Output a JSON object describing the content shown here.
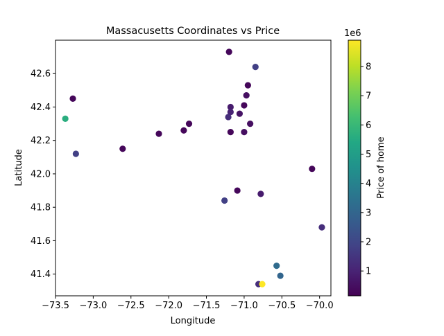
{
  "chart_data": {
    "type": "scatter",
    "title": "Massacusetts Coordinates vs Price",
    "xlabel": "Longitude",
    "ylabel": "Latitude",
    "xlim": [
      -73.5,
      -69.85
    ],
    "ylim": [
      41.27,
      42.8
    ],
    "xticks": [
      -73.5,
      -73.0,
      -72.5,
      -72.0,
      -71.5,
      -71.0,
      -70.5,
      -70.0
    ],
    "xtick_labels": [
      "−73.5",
      "−73.0",
      "−72.5",
      "−72.0",
      "−71.5",
      "−71.0",
      "−70.5",
      "−70.0"
    ],
    "yticks": [
      41.4,
      41.6,
      41.8,
      42.0,
      42.2,
      42.4,
      42.6
    ],
    "ytick_labels": [
      "41.4",
      "41.6",
      "41.8",
      "42.0",
      "42.2",
      "42.4",
      "42.6"
    ],
    "grid": false,
    "colormap": "viridis",
    "colorbar": {
      "label": "Price of home",
      "offset_label": "1e6",
      "range": [
        0.15,
        8.9
      ],
      "ticks": [
        1,
        2,
        3,
        4,
        5,
        6,
        7,
        8
      ],
      "tick_labels": [
        "1",
        "2",
        "3",
        "4",
        "5",
        "6",
        "7",
        "8"
      ]
    },
    "points": [
      {
        "x": -71.2,
        "y": 42.73,
        "price": 0.3
      },
      {
        "x": -70.85,
        "y": 42.64,
        "price": 1.8
      },
      {
        "x": -70.95,
        "y": 42.53,
        "price": 0.3
      },
      {
        "x": -73.27,
        "y": 42.45,
        "price": 0.3
      },
      {
        "x": -70.97,
        "y": 42.47,
        "price": 0.5
      },
      {
        "x": -71.0,
        "y": 42.41,
        "price": 0.3
      },
      {
        "x": -71.18,
        "y": 42.4,
        "price": 0.8
      },
      {
        "x": -71.18,
        "y": 42.37,
        "price": 1.0
      },
      {
        "x": -71.06,
        "y": 42.36,
        "price": 0.6
      },
      {
        "x": -71.21,
        "y": 42.34,
        "price": 1.3
      },
      {
        "x": -73.37,
        "y": 42.33,
        "price": 5.6
      },
      {
        "x": -70.92,
        "y": 42.3,
        "price": 0.5
      },
      {
        "x": -71.73,
        "y": 42.3,
        "price": 0.3
      },
      {
        "x": -71.8,
        "y": 42.26,
        "price": 0.3
      },
      {
        "x": -71.18,
        "y": 42.25,
        "price": 0.3
      },
      {
        "x": -71.0,
        "y": 42.25,
        "price": 0.5
      },
      {
        "x": -72.13,
        "y": 42.24,
        "price": 0.3
      },
      {
        "x": -72.61,
        "y": 42.15,
        "price": 0.3
      },
      {
        "x": -73.23,
        "y": 42.12,
        "price": 1.8
      },
      {
        "x": -70.1,
        "y": 42.03,
        "price": 0.3
      },
      {
        "x": -71.09,
        "y": 41.9,
        "price": 0.3
      },
      {
        "x": -70.78,
        "y": 41.88,
        "price": 0.8
      },
      {
        "x": -71.26,
        "y": 41.84,
        "price": 1.8
      },
      {
        "x": -69.97,
        "y": 41.68,
        "price": 1.3
      },
      {
        "x": -70.57,
        "y": 41.45,
        "price": 3.2
      },
      {
        "x": -70.52,
        "y": 41.39,
        "price": 3.0
      },
      {
        "x": -70.81,
        "y": 41.34,
        "price": 1.3
      },
      {
        "x": -70.76,
        "y": 41.34,
        "price": 8.9
      }
    ]
  }
}
